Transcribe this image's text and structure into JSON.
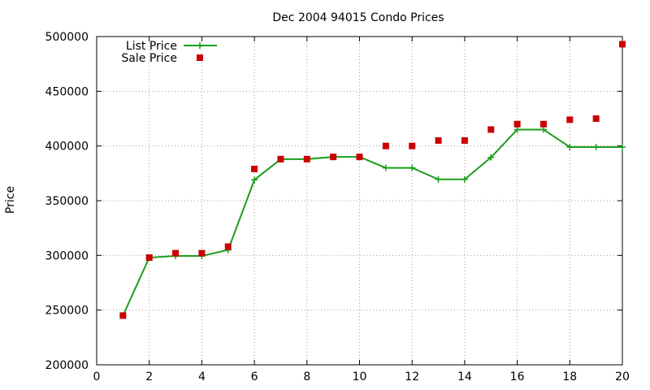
{
  "chart_data": {
    "type": "line",
    "title": "Dec 2004 94015 Condo Prices",
    "xlabel": "",
    "ylabel": "Price",
    "xlim": [
      0,
      20
    ],
    "ylim": [
      200000,
      500000
    ],
    "x_ticks": [
      0,
      2,
      4,
      6,
      8,
      10,
      12,
      14,
      16,
      18,
      20
    ],
    "y_ticks": [
      200000,
      250000,
      300000,
      350000,
      400000,
      450000,
      500000
    ],
    "grid": true,
    "legend_position": "top-left",
    "series": [
      {
        "name": "List Price",
        "style": "lines+points",
        "color": "#1a9e1a",
        "x": [
          1,
          2,
          3,
          4,
          5,
          6,
          7,
          8,
          9,
          10,
          11,
          12,
          13,
          14,
          15,
          16,
          17,
          18,
          19,
          20
        ],
        "values": [
          245000,
          298000,
          299500,
          299500,
          305000,
          369000,
          388000,
          388000,
          390000,
          390000,
          380000,
          380000,
          369500,
          369500,
          389500,
          415000,
          415000,
          399000,
          399000,
          399000
        ]
      },
      {
        "name": "Sale Price",
        "style": "points",
        "color": "#cc0000",
        "x": [
          1,
          2,
          3,
          4,
          5,
          6,
          7,
          8,
          9,
          10,
          11,
          12,
          13,
          14,
          15,
          16,
          17,
          18,
          19,
          20
        ],
        "values": [
          245000,
          298000,
          302000,
          302000,
          308000,
          379000,
          388000,
          388000,
          390000,
          390000,
          400000,
          400000,
          405000,
          405000,
          415000,
          420000,
          420000,
          424000,
          425000,
          493000
        ]
      }
    ]
  }
}
